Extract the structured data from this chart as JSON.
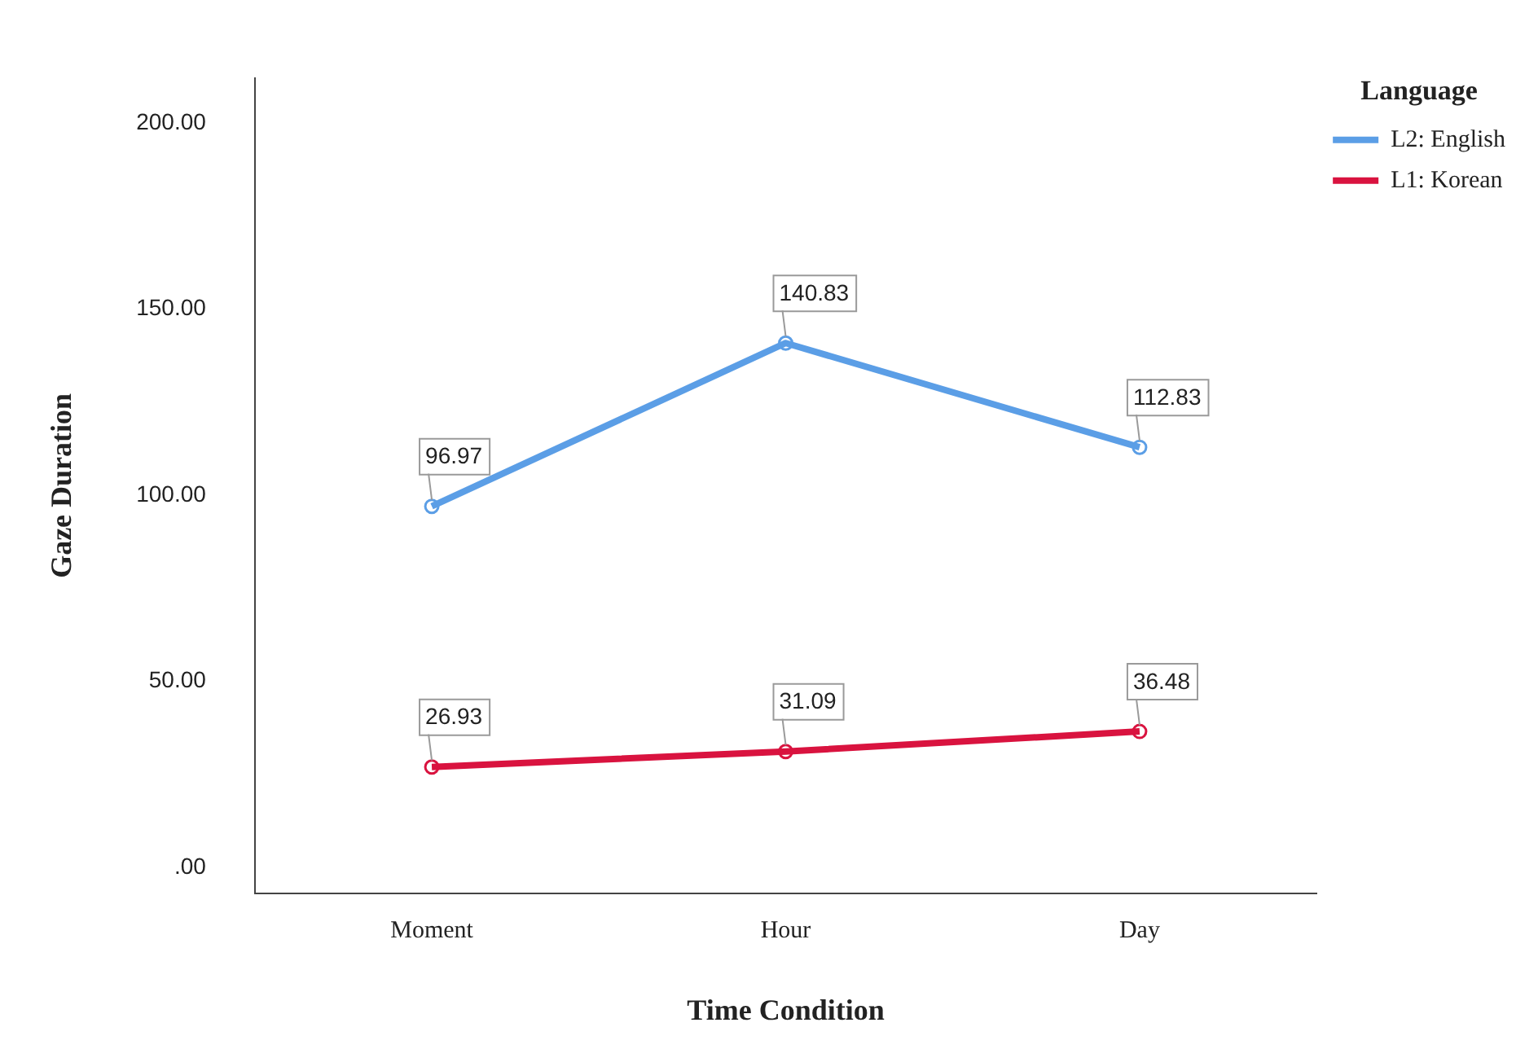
{
  "chart_data": {
    "type": "line",
    "xlabel": "Time Condition",
    "ylabel": "Gaze Duration",
    "legend_title": "Language",
    "categories": [
      "Moment",
      "Hour",
      "Day"
    ],
    "series": [
      {
        "name": "L2: English",
        "color": "#5b9ee6",
        "values": [
          96.97,
          140.83,
          112.83
        ]
      },
      {
        "name": "L1: Korean",
        "color": "#d9133f",
        "values": [
          26.93,
          31.09,
          36.48
        ]
      }
    ],
    "ylim": [
      -7,
      212
    ],
    "yticks": [
      {
        "value": 0,
        "label": ".00"
      },
      {
        "value": 50,
        "label": "50.00"
      },
      {
        "value": 100,
        "label": "100.00"
      },
      {
        "value": 150,
        "label": "150.00"
      },
      {
        "value": 200,
        "label": "200.00"
      }
    ],
    "grid": false,
    "legend": "top right",
    "marker": "circle",
    "line_style": "solid",
    "data_labels": true
  }
}
